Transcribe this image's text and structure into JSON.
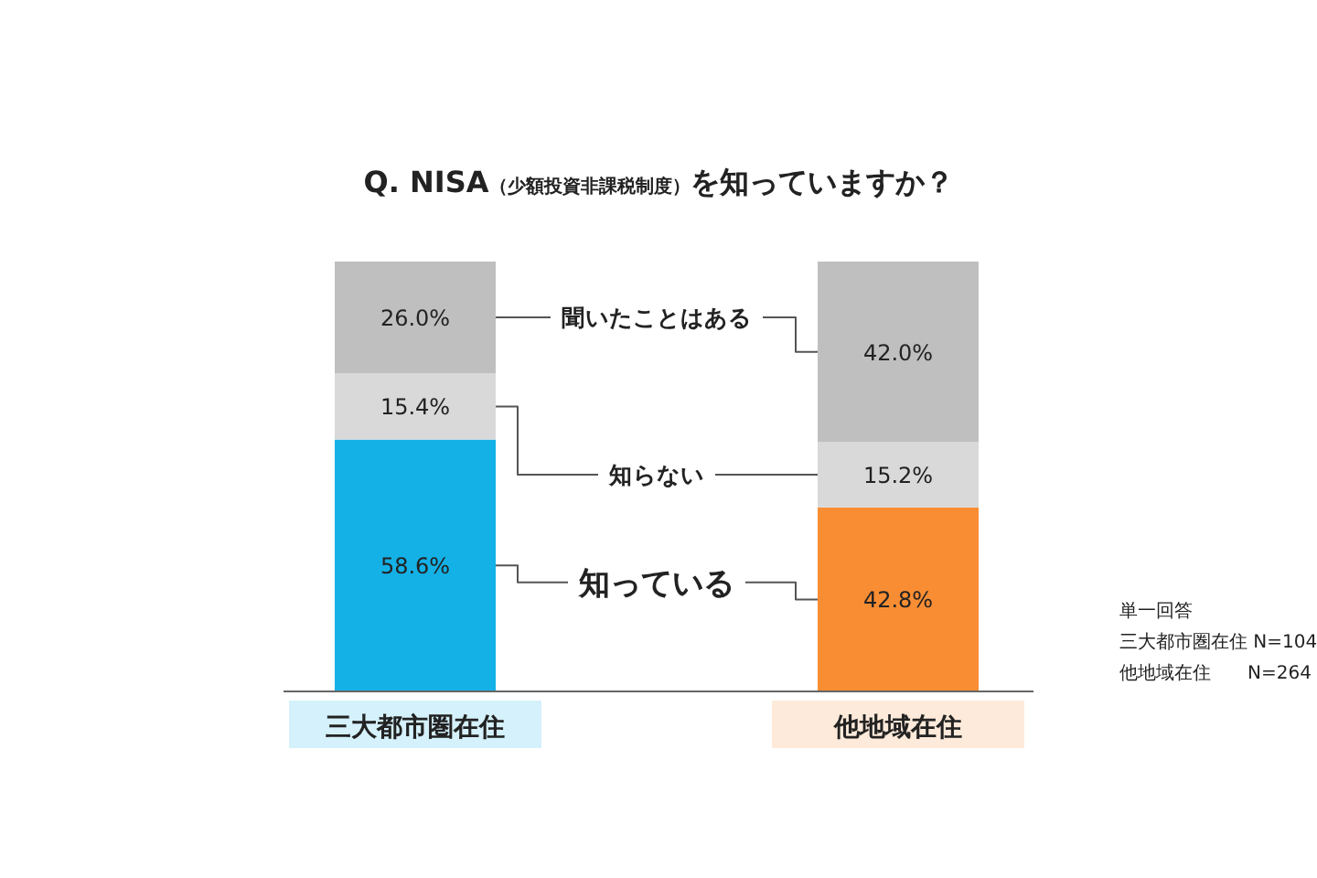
{
  "chart_data": {
    "type": "bar",
    "stacked": true,
    "title": "Q. NISA（少額投資非課税制度）を知っていますか？",
    "categories": [
      "三大都市圏在住",
      "他地域在住"
    ],
    "series": [
      {
        "name": "知っている",
        "colors": [
          "#14b1e7",
          "#f98d33"
        ],
        "values": [
          58.6,
          42.8
        ],
        "value_labels": [
          "58.6%",
          "42.8%"
        ]
      },
      {
        "name": "知らない",
        "color": "#d9d9d9",
        "values": [
          15.4,
          15.2
        ],
        "value_labels": [
          "15.4%",
          "15.2%"
        ]
      },
      {
        "name": "聞いたことはある",
        "color": "#bfbfbf",
        "values": [
          26.0,
          42.0
        ],
        "value_labels": [
          "26.0%",
          "42.0%"
        ]
      }
    ],
    "annotations": [
      "単一回答",
      "三大都市圏在住 N=104",
      "他地域在住　　N=264"
    ]
  }
}
